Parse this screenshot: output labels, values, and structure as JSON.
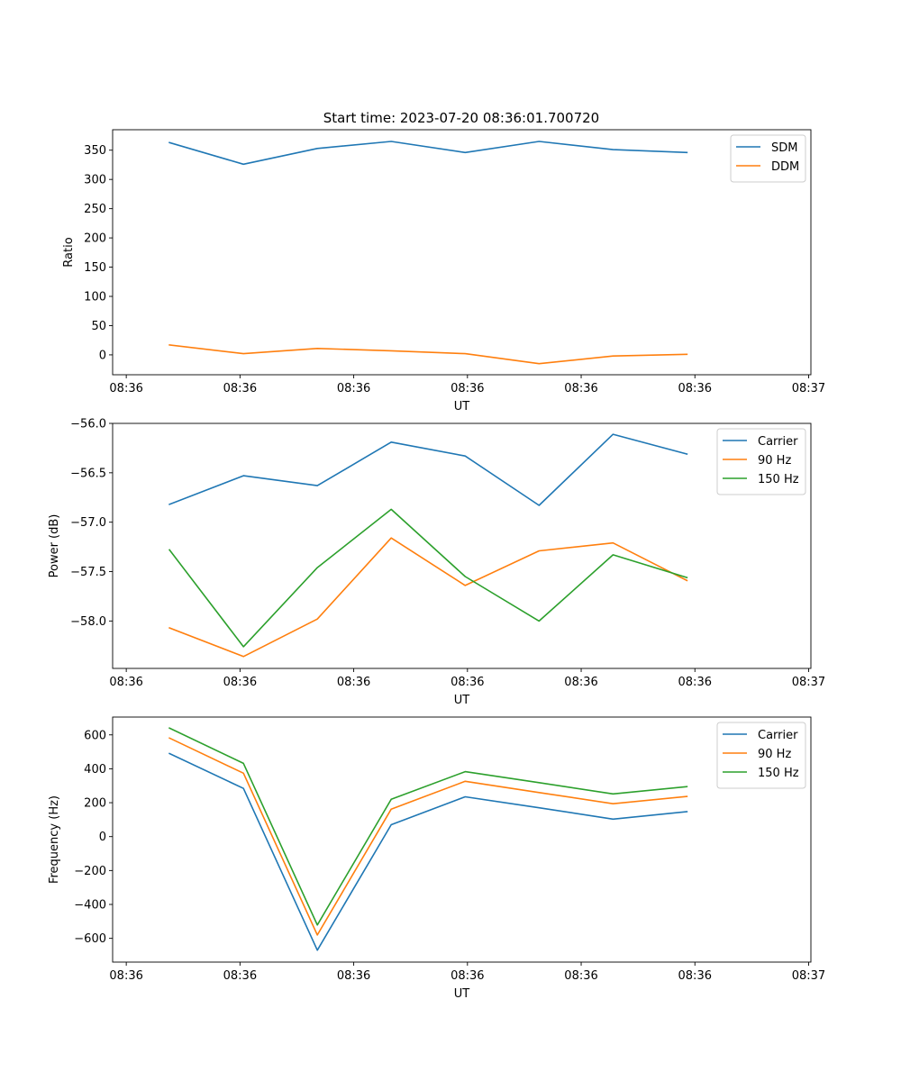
{
  "figure_title": "Start time: 2023-07-20 08:36:01.700720",
  "colors": {
    "blue": "#1f77b4",
    "orange": "#ff7f0e",
    "green": "#2ca02c"
  },
  "chart_data": [
    {
      "type": "line",
      "name": "ratio",
      "title": "Start time: 2023-07-20 08:36:01.700720",
      "xlabel": "UT",
      "ylabel": "Ratio",
      "xlim": [
        -0.12,
        6.02
      ],
      "ylim": [
        -34,
        385
      ],
      "x": [
        0.38,
        1.03,
        1.68,
        2.33,
        2.98,
        3.63,
        4.28,
        4.93
      ],
      "xticks": [
        0,
        1,
        2,
        3,
        4,
        5,
        6
      ],
      "xtick_labels": [
        "08:36",
        "08:36",
        "08:36",
        "08:36",
        "08:36",
        "08:36",
        "08:37"
      ],
      "yticks": [
        0,
        50,
        100,
        150,
        200,
        250,
        300,
        350
      ],
      "ytick_labels": [
        "0",
        "50",
        "100",
        "150",
        "200",
        "250",
        "300",
        "350"
      ],
      "legend_position": "top-right",
      "series": [
        {
          "name": "SDM",
          "color": "#1f77b4",
          "values": [
            363,
            326,
            353,
            365,
            346,
            365,
            351,
            346
          ]
        },
        {
          "name": "DDM",
          "color": "#ff7f0e",
          "values": [
            17,
            2,
            11,
            7,
            2,
            -15,
            -2,
            1
          ]
        }
      ]
    },
    {
      "type": "line",
      "name": "power",
      "title": "",
      "xlabel": "UT",
      "ylabel": "Power (dB)",
      "xlim": [
        -0.12,
        6.02
      ],
      "ylim": [
        -58.48,
        -56.0
      ],
      "x": [
        0.38,
        1.03,
        1.68,
        2.33,
        2.98,
        3.63,
        4.28,
        4.93
      ],
      "xticks": [
        0,
        1,
        2,
        3,
        4,
        5,
        6
      ],
      "xtick_labels": [
        "08:36",
        "08:36",
        "08:36",
        "08:36",
        "08:36",
        "08:36",
        "08:37"
      ],
      "yticks": [
        -58.0,
        -57.5,
        -57.0,
        -56.5,
        -56.0
      ],
      "ytick_labels": [
        "−58.0",
        "−57.5",
        "−57.0",
        "−56.5",
        "−56.0"
      ],
      "legend_position": "top-right",
      "series": [
        {
          "name": "Carrier",
          "color": "#1f77b4",
          "values": [
            -56.82,
            -56.53,
            -56.63,
            -56.19,
            -56.33,
            -56.83,
            -56.11,
            -56.31
          ]
        },
        {
          "name": "90 Hz",
          "color": "#ff7f0e",
          "values": [
            -58.07,
            -58.36,
            -57.98,
            -57.16,
            -57.64,
            -57.29,
            -57.21,
            -57.59
          ]
        },
        {
          "name": "150 Hz",
          "color": "#2ca02c",
          "values": [
            -57.28,
            -58.26,
            -57.46,
            -56.87,
            -57.55,
            -58.0,
            -57.33,
            -57.56
          ]
        }
      ]
    },
    {
      "type": "line",
      "name": "frequency",
      "title": "",
      "xlabel": "UT",
      "ylabel": "Frequency (Hz)",
      "xlim": [
        -0.12,
        6.02
      ],
      "ylim": [
        -740,
        705
      ],
      "x": [
        0.38,
        1.03,
        1.68,
        2.33,
        2.98,
        3.63,
        4.28,
        4.93
      ],
      "xticks": [
        0,
        1,
        2,
        3,
        4,
        5,
        6
      ],
      "xtick_labels": [
        "08:36",
        "08:36",
        "08:36",
        "08:36",
        "08:36",
        "08:36",
        "08:37"
      ],
      "yticks": [
        -600,
        -400,
        -200,
        0,
        200,
        400,
        600
      ],
      "ytick_labels": [
        "−600",
        "−400",
        "−200",
        "0",
        "200",
        "400",
        "600"
      ],
      "legend_position": "top-right",
      "series": [
        {
          "name": "Carrier",
          "color": "#1f77b4",
          "values": [
            490,
            284,
            -670,
            70,
            235,
            170,
            103,
            147
          ]
        },
        {
          "name": "90 Hz",
          "color": "#ff7f0e",
          "values": [
            581,
            374,
            -580,
            162,
            326,
            260,
            194,
            237
          ]
        },
        {
          "name": "150 Hz",
          "color": "#2ca02c",
          "values": [
            640,
            432,
            -521,
            220,
            383,
            318,
            252,
            295
          ]
        }
      ]
    }
  ]
}
